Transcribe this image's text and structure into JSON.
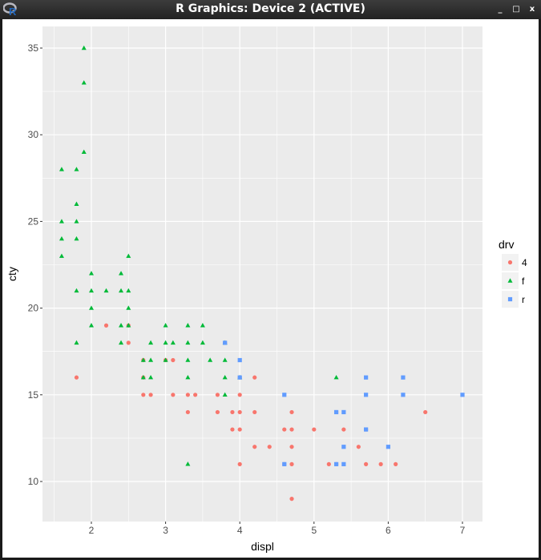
{
  "window": {
    "title": "R Graphics: Device 2 (ACTIVE)",
    "buttons": {
      "minimize": "_",
      "maximize": "□",
      "close": "x"
    }
  },
  "colors": {
    "4": "#F8766D",
    "f": "#00BA38",
    "r": "#619CFF",
    "panel": "#EBEBEB",
    "grid": "#FFFFFF"
  },
  "chart_data": {
    "type": "scatter",
    "title": "",
    "xlabel": "displ",
    "ylabel": "cty",
    "xlim": [
      1.33,
      7.27
    ],
    "ylim": [
      7.65,
      36.35
    ],
    "xticks": [
      2,
      3,
      4,
      5,
      6,
      7
    ],
    "yticks": [
      10,
      15,
      20,
      25,
      30,
      35
    ],
    "grid": true,
    "legend": {
      "title": "drv",
      "position": "right",
      "entries": [
        {
          "label": "4",
          "shape": "circle",
          "color": "#F8766D"
        },
        {
          "label": "f",
          "shape": "triangle",
          "color": "#00BA38"
        },
        {
          "label": "r",
          "shape": "square",
          "color": "#619CFF"
        }
      ]
    },
    "series": [
      {
        "name": "4",
        "shape": "circle",
        "color": "#F8766D",
        "points": [
          [
            1.8,
            16
          ],
          [
            2.2,
            19
          ],
          [
            2.5,
            19
          ],
          [
            2.5,
            18
          ],
          [
            2.7,
            17
          ],
          [
            2.7,
            16
          ],
          [
            2.7,
            15
          ],
          [
            2.8,
            15
          ],
          [
            3.0,
            17
          ],
          [
            3.1,
            17
          ],
          [
            3.1,
            15
          ],
          [
            3.3,
            15
          ],
          [
            3.3,
            14
          ],
          [
            3.4,
            15
          ],
          [
            3.7,
            15
          ],
          [
            3.7,
            14
          ],
          [
            3.8,
            18
          ],
          [
            3.9,
            14
          ],
          [
            3.9,
            13
          ],
          [
            4.0,
            16
          ],
          [
            4.0,
            15
          ],
          [
            4.0,
            14
          ],
          [
            4.0,
            13
          ],
          [
            4.0,
            11
          ],
          [
            4.2,
            16
          ],
          [
            4.2,
            14
          ],
          [
            4.2,
            12
          ],
          [
            4.4,
            12
          ],
          [
            4.6,
            13
          ],
          [
            4.6,
            11
          ],
          [
            4.7,
            14
          ],
          [
            4.7,
            13
          ],
          [
            4.7,
            12
          ],
          [
            4.7,
            11
          ],
          [
            4.7,
            9
          ],
          [
            5.0,
            13
          ],
          [
            5.2,
            11
          ],
          [
            5.3,
            14
          ],
          [
            5.3,
            11
          ],
          [
            5.4,
            13
          ],
          [
            5.6,
            12
          ],
          [
            5.7,
            13
          ],
          [
            5.7,
            11
          ],
          [
            5.9,
            11
          ],
          [
            6.1,
            11
          ],
          [
            6.5,
            14
          ]
        ]
      },
      {
        "name": "f",
        "shape": "triangle",
        "color": "#00BA38",
        "points": [
          [
            1.9,
            35
          ],
          [
            1.9,
            33
          ],
          [
            1.9,
            29
          ],
          [
            1.6,
            28
          ],
          [
            1.8,
            28
          ],
          [
            1.8,
            26
          ],
          [
            1.6,
            25
          ],
          [
            1.8,
            25
          ],
          [
            1.6,
            24
          ],
          [
            1.8,
            24
          ],
          [
            1.6,
            23
          ],
          [
            2.5,
            23
          ],
          [
            2.0,
            22
          ],
          [
            2.4,
            22
          ],
          [
            1.8,
            21
          ],
          [
            2.0,
            21
          ],
          [
            2.2,
            21
          ],
          [
            2.4,
            21
          ],
          [
            2.5,
            21
          ],
          [
            2.0,
            20
          ],
          [
            2.5,
            20
          ],
          [
            2.0,
            19
          ],
          [
            2.4,
            19
          ],
          [
            2.5,
            19
          ],
          [
            3.0,
            19
          ],
          [
            3.3,
            19
          ],
          [
            3.5,
            19
          ],
          [
            1.8,
            18
          ],
          [
            2.4,
            18
          ],
          [
            2.8,
            18
          ],
          [
            3.0,
            18
          ],
          [
            3.1,
            18
          ],
          [
            3.3,
            18
          ],
          [
            3.5,
            18
          ],
          [
            3.8,
            18
          ],
          [
            2.7,
            17
          ],
          [
            2.8,
            17
          ],
          [
            3.0,
            17
          ],
          [
            3.3,
            17
          ],
          [
            3.6,
            17
          ],
          [
            3.8,
            17
          ],
          [
            2.7,
            16
          ],
          [
            2.8,
            16
          ],
          [
            3.3,
            16
          ],
          [
            3.8,
            16
          ],
          [
            4.0,
            16
          ],
          [
            3.8,
            15
          ],
          [
            5.3,
            16
          ],
          [
            3.3,
            11
          ]
        ]
      },
      {
        "name": "r",
        "shape": "square",
        "color": "#619CFF",
        "points": [
          [
            3.8,
            18
          ],
          [
            4.0,
            17
          ],
          [
            4.0,
            16
          ],
          [
            4.6,
            15
          ],
          [
            4.6,
            11
          ],
          [
            5.3,
            14
          ],
          [
            5.3,
            11
          ],
          [
            5.4,
            14
          ],
          [
            5.4,
            12
          ],
          [
            5.4,
            11
          ],
          [
            5.7,
            16
          ],
          [
            5.7,
            15
          ],
          [
            5.7,
            13
          ],
          [
            6.0,
            12
          ],
          [
            6.2,
            16
          ],
          [
            6.2,
            15
          ],
          [
            7.0,
            15
          ]
        ]
      }
    ]
  }
}
